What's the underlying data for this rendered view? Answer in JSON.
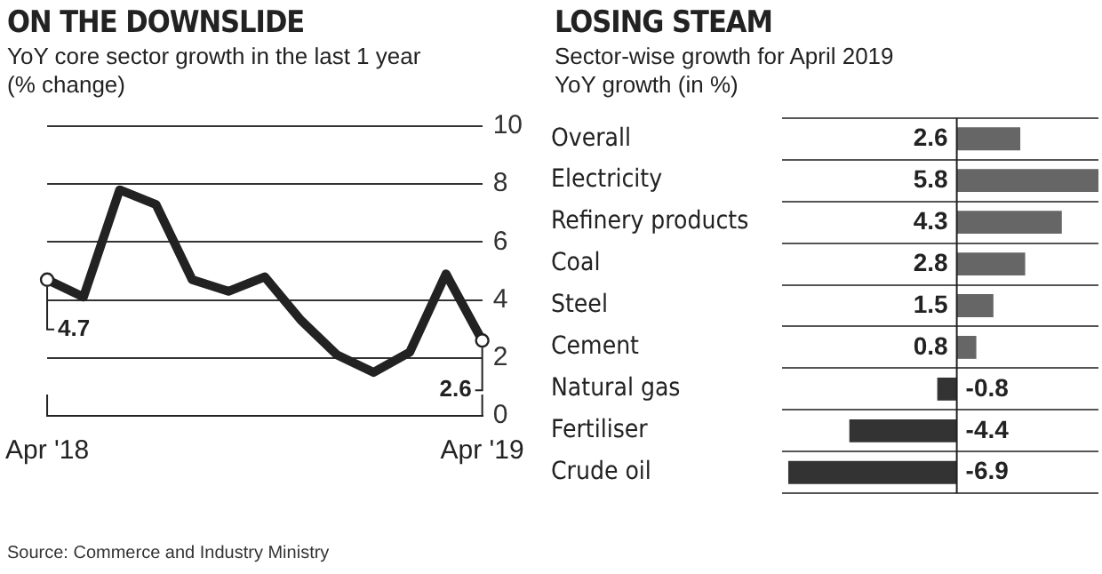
{
  "chart_data": [
    {
      "type": "line",
      "title": "ON THE DOWNSLIDE",
      "subtitle": "YoY core sector growth in the last 1 year (% change)",
      "categories": [
        "Apr '18",
        null,
        null,
        null,
        null,
        null,
        null,
        null,
        null,
        null,
        null,
        null,
        "Apr '19"
      ],
      "series": [
        {
          "color": "#222222",
          "values": [
            4.7,
            4.1,
            7.8,
            7.3,
            4.7,
            4.3,
            4.8,
            3.3,
            2.1,
            1.5,
            2.2,
            4.9,
            2.6
          ]
        }
      ],
      "ylim": [
        0,
        10
      ],
      "yticks": [
        0,
        2,
        4,
        6,
        8,
        10
      ],
      "grid": "y",
      "legend": false,
      "annotations": [
        {
          "text": "4.7",
          "x": "Apr '18",
          "y": 4.7
        },
        {
          "text": "2.6",
          "x": "Apr '19",
          "y": 2.6
        },
        "Source: Commerce and Industry Ministry"
      ]
    },
    {
      "type": "bar",
      "orientation": "horizontal",
      "title": "LOSING STEAM",
      "subtitle": "Sector-wise growth for April 2019\nYoY growth (in %)",
      "categories": [
        "Overall",
        "Electricity",
        "Refinery products",
        "Coal",
        "Steel",
        "Cement",
        "Natural gas",
        "Fertiliser",
        "Crude oil"
      ],
      "values": [
        2.6,
        5.8,
        4.3,
        2.8,
        1.5,
        0.8,
        -0.8,
        -4.4,
        -6.9
      ],
      "colors": [
        "#666666",
        "#666666",
        "#666666",
        "#666666",
        "#666666",
        "#666666",
        "#333333",
        "#333333",
        "#333333"
      ],
      "data_labels": true,
      "grid": "y",
      "legend": false
    }
  ]
}
